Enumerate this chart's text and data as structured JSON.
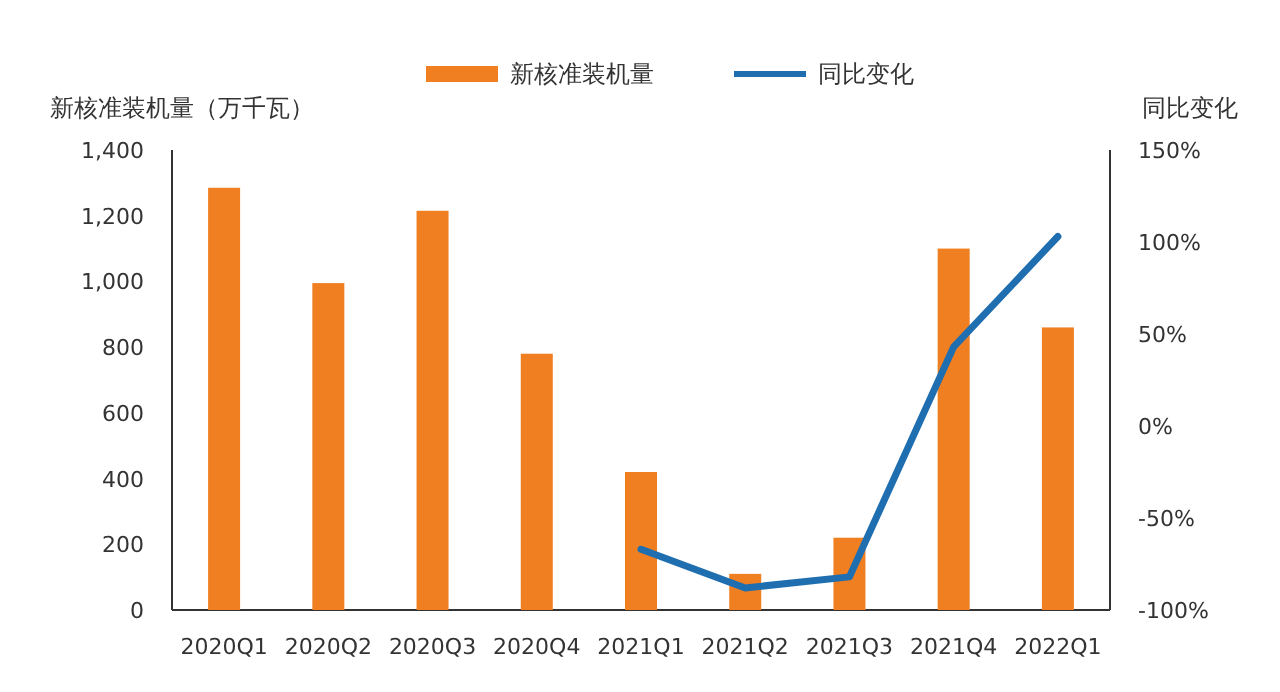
{
  "chart_data": {
    "type": "bar",
    "ylabel": "新核准装机量（万千瓦）",
    "y2label": "同比变化",
    "categories": [
      "2020Q1",
      "2020Q2",
      "2020Q3",
      "2020Q4",
      "2021Q1",
      "2021Q2",
      "2021Q3",
      "2021Q4",
      "2022Q1"
    ],
    "series": [
      {
        "name": "新核准装机量",
        "color": "#f07f22",
        "values": [
          1285,
          995,
          1215,
          780,
          420,
          110,
          220,
          1100,
          860
        ]
      },
      {
        "name": "同比变化",
        "type": "line",
        "axis": "y2",
        "color": "#1f6eb0",
        "values": [
          null,
          null,
          null,
          null,
          -67,
          -88,
          -82,
          43,
          103
        ]
      }
    ],
    "ylim": [
      0,
      1400
    ],
    "yticks": [
      0,
      200,
      400,
      600,
      800,
      {
        "value": 1000,
        "label": "1,000"
      },
      {
        "value": 1200,
        "label": "1,200"
      },
      {
        "value": 1400,
        "label": "1,400"
      }
    ],
    "y2lim": [
      -100,
      150
    ],
    "y2ticks": [
      {
        "value": -100,
        "label": "-100%"
      },
      {
        "value": -50,
        "label": "-50%"
      },
      {
        "value": 0,
        "label": "0%"
      },
      {
        "value": 50,
        "label": "50%"
      },
      {
        "value": 100,
        "label": "100%"
      },
      {
        "value": 150,
        "label": "150%"
      }
    ],
    "legend": "top",
    "grid": false,
    "marker": "none"
  }
}
